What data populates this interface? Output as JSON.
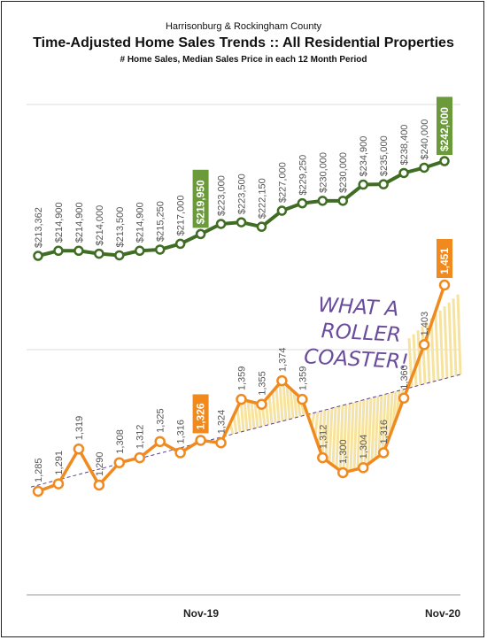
{
  "header": {
    "county": "Harrisonburg & Rockingham County",
    "title": "Time-Adjusted Home Sales Trends  ::  All Residential Properties",
    "subtitle": "# Home Sales, Median Sales Price in each 12 Month Period"
  },
  "annotation": {
    "line1": "WHAT A",
    "line2": "ROLLER",
    "line3": "COASTER!"
  },
  "chart_data": {
    "type": "line",
    "x_tick_labels": [
      "Nov-19",
      "Nov-20"
    ],
    "periods_count": 21,
    "series": [
      {
        "key": "price",
        "color": "#3f6d24",
        "highlight_color": "#6a9a3a",
        "values": [
          213362,
          214900,
          214900,
          214000,
          213500,
          214900,
          215250,
          217000,
          219950,
          223000,
          223500,
          222150,
          227000,
          229250,
          230000,
          230000,
          234900,
          235000,
          238400,
          240000,
          242000
        ],
        "labels": [
          "$213,362",
          "$214,900",
          "$214,900",
          "$214,000",
          "$213,500",
          "$214,900",
          "$215,250",
          "$217,000",
          "$219,950",
          "$223,000",
          "$223,500",
          "$222,150",
          "$227,000",
          "$229,250",
          "$230,000",
          "$230,000",
          "$234,900",
          "$235,000",
          "$238,400",
          "$240,000",
          "$242,000"
        ],
        "highlight_indices": [
          8,
          20
        ]
      },
      {
        "key": "sales",
        "color": "#f08a1e",
        "highlight_color": "#f08a1e",
        "values": [
          1285,
          1291,
          1319,
          1290,
          1308,
          1312,
          1325,
          1316,
          1326,
          1324,
          1359,
          1355,
          1374,
          1359,
          1312,
          1300,
          1304,
          1316,
          1360,
          1403,
          1451
        ],
        "labels": [
          "1,285",
          "1,291",
          "1,319",
          "1,290",
          "1,308",
          "1,312",
          "1,325",
          "1,316",
          "1,326",
          "1,324",
          "1,359",
          "1,355",
          "1,374",
          "1,359",
          "1,312",
          "1,300",
          "1,304",
          "1,316",
          "1,360",
          "1,403",
          "1,451"
        ],
        "highlight_indices": [
          8,
          20
        ]
      }
    ],
    "trend_color": "#5b3f8f",
    "shade_color": "#f7e3a0",
    "annotation_color": "#6a4c9c"
  }
}
